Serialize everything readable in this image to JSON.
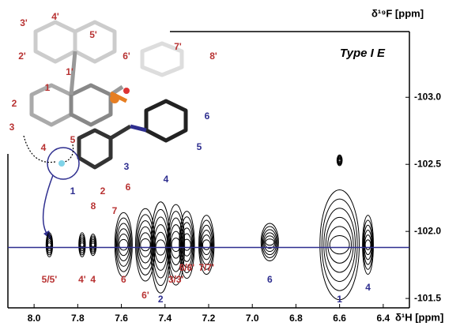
{
  "chart_data": {
    "type": "contour",
    "x_label": "δ¹H [ppm]",
    "y_label": "δ¹⁹F [ppm]",
    "annotation": "Type I E",
    "xlim": [
      8.12,
      6.28
    ],
    "xticks": [
      {
        "value": 8,
        "label": "8.0"
      },
      7.8,
      7.6,
      7.4,
      7.2,
      {
        "value": 7,
        "label": "7.0"
      },
      6.8,
      6.6,
      6.4
    ],
    "ylim": [
      -103.49,
      -101.43
    ],
    "yticks": [
      {
        "value": -103,
        "label": "-103.0"
      },
      -102.5,
      {
        "value": -102,
        "label": "-102.0"
      },
      -101.5
    ],
    "reference_line": -101.88,
    "reference_color": "#2e2e8f",
    "peaks": {
      "labels": [
        "5/5'",
        "4'",
        "4",
        "6",
        "6'",
        "2",
        "3/3'",
        "8/8'",
        "7/7'",
        "6",
        "1",
        "4",
        null
      ],
      "label_colors": [
        "#b83232",
        "#b83232",
        "#b83232",
        "#b83232",
        "#b83232",
        "#2e2e8f",
        "#b83232",
        "#b83232",
        "#b83232",
        "#2e2e8f",
        "#2e2e8f",
        "#2e2e8f",
        null
      ],
      "x": [
        7.93,
        7.78,
        7.73,
        7.59,
        7.49,
        7.42,
        7.35,
        7.3,
        7.21,
        6.92,
        6.6,
        6.47,
        6.6
      ],
      "y": [
        -101.9,
        -101.9,
        -101.9,
        -101.9,
        -101.9,
        -101.88,
        -101.9,
        -101.9,
        -101.9,
        -101.92,
        -101.9,
        -101.9,
        -102.53
      ],
      "x_halfwidth": [
        0.015,
        0.015,
        0.015,
        0.04,
        0.045,
        0.045,
        0.04,
        0.035,
        0.035,
        0.04,
        0.09,
        0.025,
        0.012
      ],
      "y_halfheight": [
        0.09,
        0.09,
        0.08,
        0.24,
        0.27,
        0.34,
        0.3,
        0.25,
        0.22,
        0.14,
        0.41,
        0.22,
        0.04
      ]
    },
    "molecule_labels": [
      {
        "text": "3'",
        "color": "#b83232"
      },
      {
        "text": "4'",
        "color": "#b83232"
      },
      {
        "text": "5'",
        "color": "#b83232"
      },
      {
        "text": "2'",
        "color": "#b83232"
      },
      {
        "text": "6'",
        "color": "#b83232"
      },
      {
        "text": "7'",
        "color": "#b83232"
      },
      {
        "text": "8'",
        "color": "#b83232"
      },
      {
        "text": "1'",
        "color": "#b83232"
      },
      {
        "text": "1",
        "color": "#b83232"
      },
      {
        "text": "2",
        "color": "#b83232"
      },
      {
        "text": "3",
        "color": "#b83232"
      },
      {
        "text": "4",
        "color": "#b83232"
      },
      {
        "text": "5",
        "color": "#b83232"
      },
      {
        "text": "6",
        "color": "#2e2e8f"
      },
      {
        "text": "5",
        "color": "#2e2e8f"
      },
      {
        "text": "4",
        "color": "#2e2e8f"
      },
      {
        "text": "3",
        "color": "#2e2e8f"
      },
      {
        "text": "1",
        "color": "#2e2e8f"
      },
      {
        "text": "2",
        "color": "#b83232"
      },
      {
        "text": "6",
        "color": "#b83232"
      },
      {
        "text": "8",
        "color": "#b83232"
      },
      {
        "text": "7",
        "color": "#b83232"
      }
    ]
  }
}
